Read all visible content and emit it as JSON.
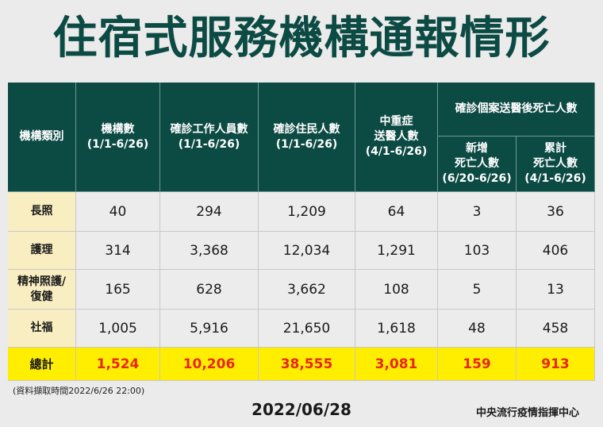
{
  "title": "住宿式服務機構通報情形",
  "header": {
    "category": "機構類別",
    "institutions": "機構數\n(1/1-6/26)",
    "staff_cases": "確診工作人員數\n(1/1-6/26)",
    "resident_cases": "確診住民人數\n(1/1-6/26)",
    "severe": "中重症\n送醫人數\n(4/1-6/26)",
    "deaths_group": "確診個案送醫後死亡人數",
    "new_deaths": "新增\n死亡人數\n(6/20-6/26)",
    "cum_deaths": "累計\n死亡人數\n(4/1-6/26)"
  },
  "rows": [
    {
      "label": "長照",
      "values": [
        "40",
        "294",
        "1,209",
        "64",
        "3",
        "36"
      ]
    },
    {
      "label": "護理",
      "values": [
        "314",
        "3,368",
        "12,034",
        "1,291",
        "103",
        "406"
      ]
    },
    {
      "label": "精神照護/\n復健",
      "values": [
        "165",
        "628",
        "3,662",
        "108",
        "5",
        "13"
      ]
    },
    {
      "label": "社福",
      "values": [
        "1,005",
        "5,916",
        "21,650",
        "1,618",
        "48",
        "458"
      ]
    }
  ],
  "total": {
    "label": "總計",
    "values": [
      "1,524",
      "10,206",
      "38,555",
      "3,081",
      "159",
      "913"
    ]
  },
  "note": "(資料擷取時間2022/6/26 22:00)",
  "date": "2022/06/28",
  "org": "中央流行疫情指揮中心",
  "colors": {
    "header_bg": "#0c4a44",
    "label_bg": "#f8eec2",
    "total_bg": "#ffee00",
    "total_text": "#e8261c"
  }
}
